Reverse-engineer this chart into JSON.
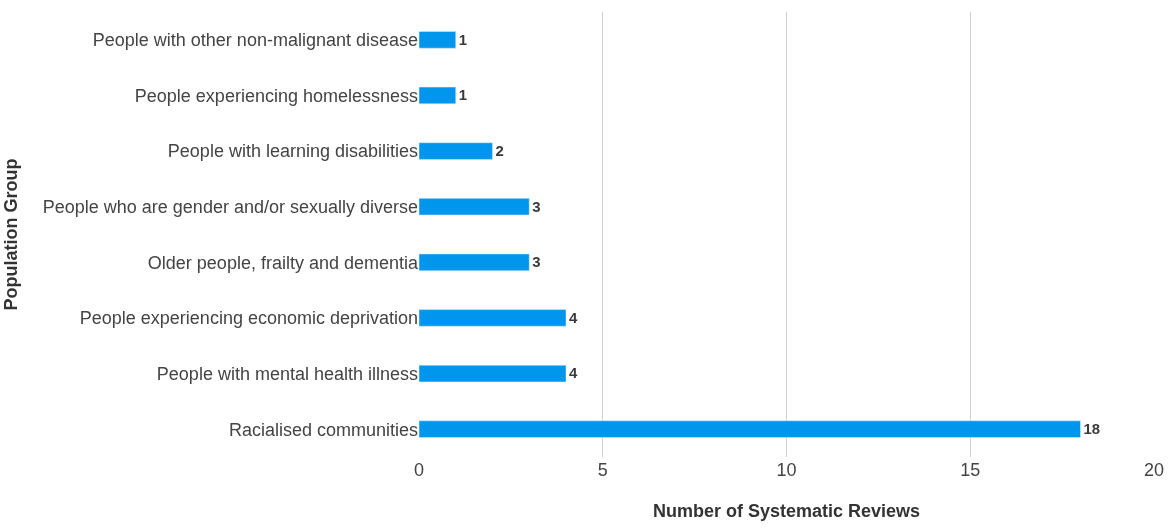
{
  "chart_data": {
    "type": "bar",
    "orientation": "horizontal",
    "xlabel": "Number of Systematic Reviews",
    "ylabel": "Population Group",
    "categories": [
      "People with other non-malignant disease",
      "People experiencing homelessness",
      "People with learning disabilities",
      "People who are gender and/or sexually diverse",
      "Older people, frailty and dementia",
      "People experiencing economic deprivation",
      "People with mental health illness",
      "Racialised communities"
    ],
    "values": [
      1,
      1,
      2,
      3,
      3,
      4,
      4,
      18
    ],
    "color": "#0096ee",
    "xlim": [
      0,
      20
    ],
    "xticks": [
      0,
      5,
      10,
      15,
      20
    ],
    "grid": "x",
    "data_labels": true,
    "legend": false
  }
}
